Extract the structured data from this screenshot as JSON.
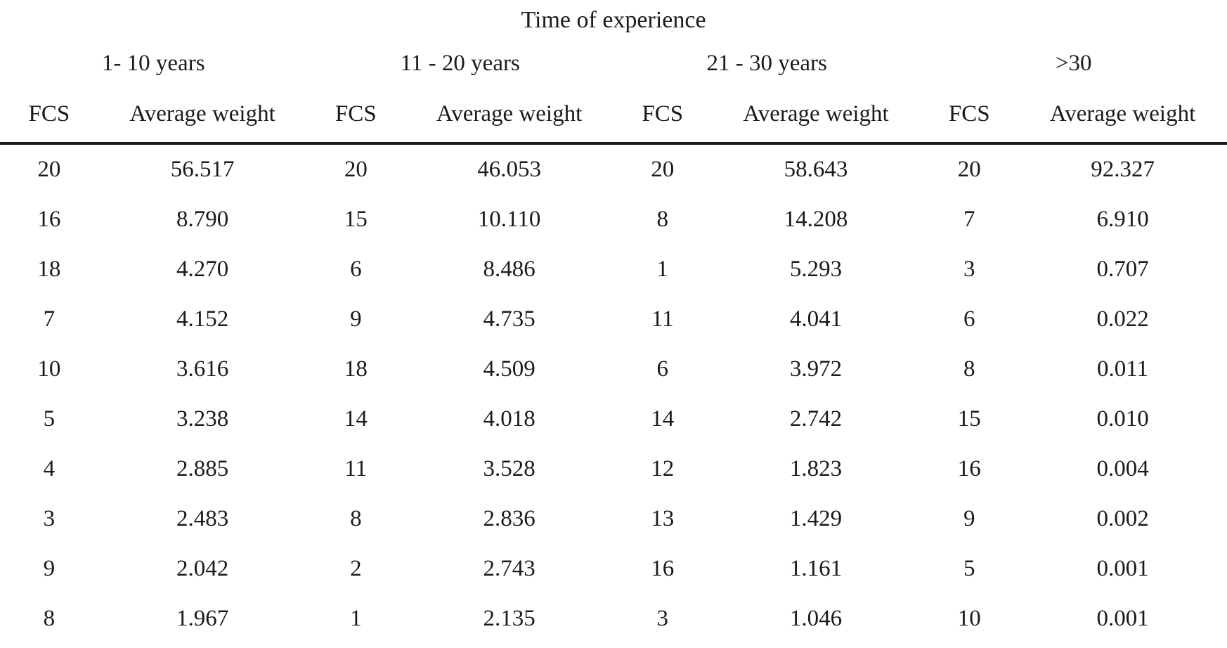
{
  "colors": {
    "background": "#ffffff",
    "text": "#1b1b1b",
    "rule": "#1a1a1a"
  },
  "table": {
    "title": "Time of experience",
    "groups": [
      {
        "label": "1- 10 years",
        "fcs_header": "FCS",
        "weight_header": "Average weight"
      },
      {
        "label": "11 - 20 years",
        "fcs_header": "FCS",
        "weight_header": "Average weight"
      },
      {
        "label": "21 - 30 years",
        "fcs_header": "FCS",
        "weight_header": "Average weight"
      },
      {
        "label": ">30",
        "fcs_header": "FCS",
        "weight_header": "Average weight"
      }
    ],
    "rows": [
      [
        "20",
        "56.517",
        "20",
        "46.053",
        "20",
        "58.643",
        "20",
        "92.327"
      ],
      [
        "16",
        "8.790",
        "15",
        "10.110",
        "8",
        "14.208",
        "7",
        "6.910"
      ],
      [
        "18",
        "4.270",
        "6",
        "8.486",
        "1",
        "5.293",
        "3",
        "0.707"
      ],
      [
        "7",
        "4.152",
        "9",
        "4.735",
        "11",
        "4.041",
        "6",
        "0.022"
      ],
      [
        "10",
        "3.616",
        "18",
        "4.509",
        "6",
        "3.972",
        "8",
        "0.011"
      ],
      [
        "5",
        "3.238",
        "14",
        "4.018",
        "14",
        "2.742",
        "15",
        "0.010"
      ],
      [
        "4",
        "2.885",
        "11",
        "3.528",
        "12",
        "1.823",
        "16",
        "0.004"
      ],
      [
        "3",
        "2.483",
        "8",
        "2.836",
        "13",
        "1.429",
        "9",
        "0.002"
      ],
      [
        "9",
        "2.042",
        "2",
        "2.743",
        "16",
        "1.161",
        "5",
        "0.001"
      ],
      [
        "8",
        "1.967",
        "1",
        "2.135",
        "3",
        "1.046",
        "10",
        "0.001"
      ]
    ]
  }
}
